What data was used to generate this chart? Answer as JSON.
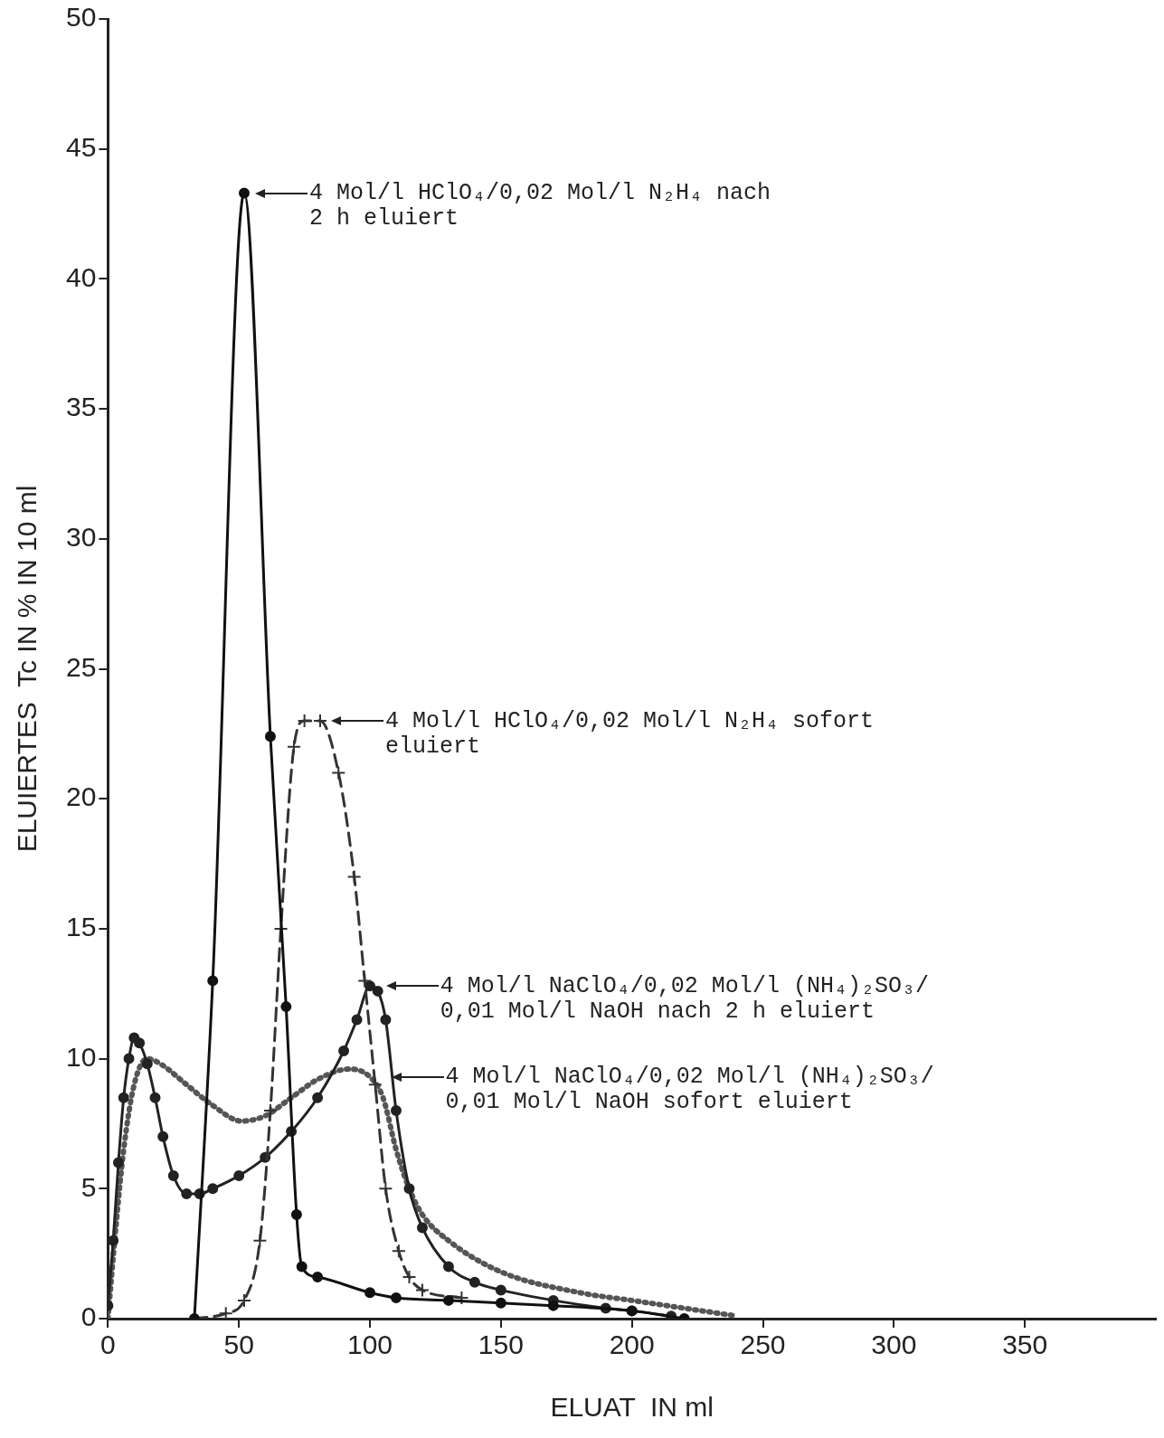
{
  "chart_data": {
    "type": "line",
    "xlabel": "ELUAT  IN ml",
    "ylabel": "ELUIERTES  Tc IN % IN 10 ml",
    "xlim": [
      0,
      400
    ],
    "xticks": [
      0,
      50,
      100,
      150,
      200,
      250,
      300,
      350
    ],
    "ylim": [
      0,
      50
    ],
    "yticks": [
      0,
      5,
      10,
      15,
      20,
      25,
      30,
      35,
      40,
      45,
      50
    ],
    "grid": false,
    "legend": false,
    "series": [
      {
        "color": "#111111",
        "marker": "circle",
        "line_style": "solid",
        "x": [
          33,
          40,
          52,
          62,
          68,
          72,
          74,
          80,
          100,
          110,
          130,
          150,
          170,
          200,
          220
        ],
        "values": [
          0,
          13,
          43.3,
          22.4,
          12,
          4,
          2,
          1.6,
          1,
          0.8,
          0.7,
          0.6,
          0.5,
          0.3,
          0
        ]
      },
      {
        "color": "#333333",
        "marker": "cross",
        "line_style": "dashed",
        "x": [
          33,
          45,
          52,
          58,
          62,
          66,
          71,
          75,
          81,
          88,
          94,
          98,
          102,
          106,
          111,
          115,
          120,
          135
        ],
        "values": [
          0,
          0.2,
          0.7,
          3,
          8,
          15,
          22,
          23,
          23,
          21,
          17,
          13,
          9,
          5,
          2.6,
          1.6,
          1.1,
          0.8
        ]
      },
      {
        "color": "#222222",
        "marker": "circle",
        "line_style": "solid",
        "x": [
          0,
          2,
          4,
          6,
          8,
          10,
          12,
          15,
          18,
          21,
          25,
          30,
          35,
          40,
          50,
          60,
          70,
          80,
          90,
          95,
          100,
          103,
          106,
          110,
          115,
          120,
          130,
          140,
          150,
          170,
          190,
          200,
          215
        ],
        "values": [
          0.5,
          3,
          6,
          8.5,
          10,
          10.8,
          10.6,
          9.8,
          8.5,
          7,
          5.5,
          4.8,
          4.8,
          5,
          5.5,
          6.2,
          7.2,
          8.5,
          10.3,
          11.5,
          12.8,
          12.6,
          11.5,
          8,
          5,
          3.5,
          2,
          1.4,
          1.1,
          0.7,
          0.4,
          0.3,
          0.1
        ]
      },
      {
        "color": "#555555",
        "marker": "none",
        "line_style": "dotted",
        "x": [
          0,
          3,
          6,
          10,
          15,
          20,
          30,
          40,
          51,
          60,
          70,
          80,
          92,
          100,
          105,
          110,
          115,
          120,
          130,
          150,
          180,
          200,
          220,
          240
        ],
        "values": [
          0,
          3.5,
          6.5,
          9,
          10,
          9.8,
          9,
          8.2,
          7.6,
          7.8,
          8.5,
          9.2,
          9.6,
          9.3,
          8.5,
          6.5,
          5,
          4,
          3,
          1.8,
          1,
          0.7,
          0.4,
          0.1
        ]
      }
    ],
    "annotations": [
      {
        "text": "4 Mol/l HClO₄/0,02 Mol/l N₂H₄ nach\n2 h eluiert",
        "x": 52,
        "y": 43.3
      },
      {
        "text": "4 Mol/l HClO₄/0,02 Mol/l N₂H₄ sofort\neluiert",
        "x": 81,
        "y": 23
      },
      {
        "text": "4 Mol/l NaClO₄/0,02 Mol/l (NH₄)₂SO₃/\n0,01 Mol/l NaOH nach 2 h eluiert",
        "x": 102,
        "y": 12.8
      },
      {
        "text": "4 Mol/l NaClO₄/0,02 Mol/l (NH₄)₂SO₃/\n0,01 Mol/l NaOH sofort eluiert",
        "x": 104,
        "y": 9.3
      }
    ]
  }
}
